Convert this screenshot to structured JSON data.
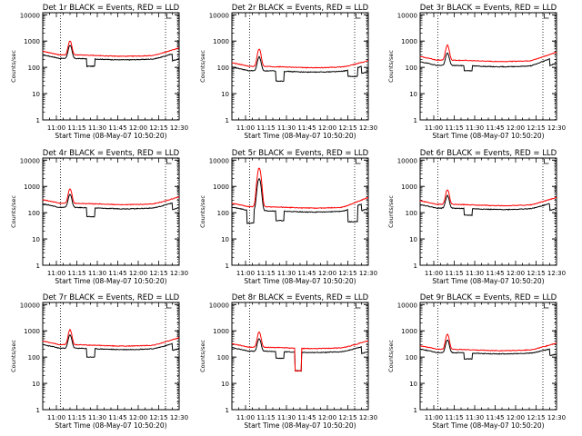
{
  "chart_data": [
    {
      "type": "line",
      "title": "Det 1r BLACK = Events, RED = LLD",
      "xlabel": "Start Time (08-May-07 10:50:20)",
      "ylabel": "Counts/sec",
      "x_tick_labels": [
        "11:00",
        "11:15",
        "11:30",
        "11:45",
        "12:00",
        "12:15",
        "12:30"
      ],
      "y_tick_labels": [
        "1",
        "10",
        "100",
        "1000",
        "10000"
      ],
      "y_scale": "log",
      "ylim": [
        1,
        12000
      ],
      "xlim": [
        "10:50",
        "12:30"
      ],
      "events_level": 220,
      "lld_level": 300,
      "events_peak": 700,
      "lld_peak": 1000,
      "events_dips": [
        [
          "11:22",
          "11:28",
          110
        ]
      ],
      "events_drop_after": "12:25",
      "lld_rise_end": 550,
      "series": [
        {
          "name": "BLACK = Events",
          "color": "#000000"
        },
        {
          "name": "RED = LLD",
          "color": "#ff0000"
        }
      ]
    },
    {
      "type": "line",
      "title": "Det 2r BLACK = Events, RED = LLD",
      "xlabel": "Start Time (08-May-07 10:50:20)",
      "ylabel": "Counts/sec",
      "x_tick_labels": [
        "11:00",
        "11:15",
        "11:30",
        "11:45",
        "12:00",
        "12:15",
        "12:30"
      ],
      "y_tick_labels": [
        "1",
        "10",
        "100",
        "1000",
        "10000"
      ],
      "y_scale": "log",
      "ylim": [
        1,
        12000
      ],
      "xlim": [
        "10:50",
        "12:30"
      ],
      "events_level": 75,
      "lld_level": 110,
      "events_peak": 250,
      "lld_peak": 500,
      "events_dips": [
        [
          "11:22",
          "11:28",
          30
        ],
        [
          "12:15",
          "12:22",
          45
        ]
      ],
      "events_drop_after": "12:25",
      "lld_rise_end": 180,
      "series": [
        {
          "name": "BLACK = Events",
          "color": "#000000"
        },
        {
          "name": "RED = LLD",
          "color": "#ff0000"
        }
      ]
    },
    {
      "type": "line",
      "title": "Det 3r BLACK = Events, RED = LLD",
      "xlabel": "Start Time (08-May-07 10:50:20)",
      "ylabel": "Counts/sec",
      "x_tick_labels": [
        "11:00",
        "11:15",
        "11:30",
        "11:45",
        "12:00",
        "12:15",
        "12:30"
      ],
      "y_tick_labels": [
        "1",
        "10",
        "100",
        "1000",
        "10000"
      ],
      "y_scale": "log",
      "ylim": [
        1,
        12000
      ],
      "xlim": [
        "10:50",
        "12:30"
      ],
      "events_level": 120,
      "lld_level": 190,
      "events_peak": 350,
      "lld_peak": 700,
      "events_dips": [
        [
          "11:22",
          "11:28",
          75
        ]
      ],
      "events_drop_after": "12:25",
      "lld_rise_end": 380,
      "series": [
        {
          "name": "BLACK = Events",
          "color": "#000000"
        },
        {
          "name": "RED = LLD",
          "color": "#ff0000"
        }
      ]
    },
    {
      "type": "line",
      "title": "Det 4r BLACK = Events, RED = LLD",
      "xlabel": "Start Time (08-May-07 10:50:20)",
      "ylabel": "Counts/sec",
      "x_tick_labels": [
        "11:00",
        "11:15",
        "11:30",
        "11:45",
        "12:00",
        "12:15",
        "12:30"
      ],
      "y_tick_labels": [
        "1",
        "10",
        "100",
        "1000",
        "10000"
      ],
      "y_scale": "log",
      "ylim": [
        1,
        12000
      ],
      "xlim": [
        "10:50",
        "12:30"
      ],
      "events_level": 160,
      "lld_level": 230,
      "events_peak": 500,
      "lld_peak": 800,
      "events_dips": [
        [
          "11:22",
          "11:28",
          70
        ]
      ],
      "events_drop_after": "12:25",
      "lld_rise_end": 400,
      "series": [
        {
          "name": "BLACK = Events",
          "color": "#000000"
        },
        {
          "name": "RED = LLD",
          "color": "#ff0000"
        }
      ]
    },
    {
      "type": "line",
      "title": "Det 5r BLACK = Events, RED = LLD",
      "xlabel": "Start Time (08-May-07 10:50:20)",
      "ylabel": "Counts/sec",
      "x_tick_labels": [
        "11:00",
        "11:15",
        "11:30",
        "11:45",
        "12:00",
        "12:15",
        "12:30"
      ],
      "y_tick_labels": [
        "1",
        "10",
        "100",
        "1000",
        "10000"
      ],
      "y_scale": "log",
      "ylim": [
        1,
        12000
      ],
      "xlim": [
        "10:50",
        "12:30"
      ],
      "events_level": 120,
      "lld_level": 170,
      "events_peak": 2000,
      "lld_peak": 5000,
      "events_dips": [
        [
          "11:01",
          "11:06",
          40
        ],
        [
          "11:22",
          "11:28",
          50
        ],
        [
          "12:15",
          "12:22",
          45
        ]
      ],
      "events_drop_after": "12:25",
      "lld_rise_end": 380,
      "series": [
        {
          "name": "BLACK = Events",
          "color": "#000000"
        },
        {
          "name": "RED = LLD",
          "color": "#ff0000"
        }
      ]
    },
    {
      "type": "line",
      "title": "Det 6r BLACK = Events, RED = LLD",
      "xlabel": "Start Time (08-May-07 10:50:20)",
      "ylabel": "Counts/sec",
      "x_tick_labels": [
        "11:00",
        "11:15",
        "11:30",
        "11:45",
        "12:00",
        "12:15",
        "12:30"
      ],
      "y_tick_labels": [
        "1",
        "10",
        "100",
        "1000",
        "10000"
      ],
      "y_scale": "log",
      "ylim": [
        1,
        12000
      ],
      "xlim": [
        "10:50",
        "12:30"
      ],
      "events_level": 150,
      "lld_level": 210,
      "events_peak": 450,
      "lld_peak": 750,
      "events_dips": [
        [
          "11:22",
          "11:28",
          80
        ]
      ],
      "events_drop_after": "12:25",
      "lld_rise_end": 380,
      "series": [
        {
          "name": "BLACK = Events",
          "color": "#000000"
        },
        {
          "name": "RED = LLD",
          "color": "#ff0000"
        }
      ]
    },
    {
      "type": "line",
      "title": "Det 7r BLACK = Events, RED = LLD",
      "xlabel": "Start Time (08-May-07 10:50:20)",
      "ylabel": "Counts/sec",
      "x_tick_labels": [
        "11:00",
        "11:15",
        "11:30",
        "11:45",
        "12:00",
        "12:15",
        "12:30"
      ],
      "y_tick_labels": [
        "1",
        "10",
        "100",
        "1000",
        "10000"
      ],
      "y_scale": "log",
      "ylim": [
        1,
        12000
      ],
      "xlim": [
        "10:50",
        "12:30"
      ],
      "events_level": 220,
      "lld_level": 300,
      "events_peak": 700,
      "lld_peak": 1100,
      "events_dips": [
        [
          "11:22",
          "11:28",
          100
        ]
      ],
      "events_drop_after": "12:25",
      "lld_rise_end": 550,
      "series": [
        {
          "name": "BLACK = Events",
          "color": "#000000"
        },
        {
          "name": "RED = LLD",
          "color": "#ff0000"
        }
      ]
    },
    {
      "type": "line",
      "title": "Det 8r BLACK = Events, RED = LLD",
      "xlabel": "Start Time (08-May-07 10:50:20)",
      "ylabel": "Counts/sec",
      "x_tick_labels": [
        "11:00",
        "11:15",
        "11:30",
        "11:45",
        "12:00",
        "12:15",
        "12:30"
      ],
      "y_tick_labels": [
        "1",
        "10",
        "100",
        "1000",
        "10000"
      ],
      "y_scale": "log",
      "ylim": [
        1,
        12000
      ],
      "xlim": [
        "10:50",
        "12:30"
      ],
      "events_level": 170,
      "lld_level": 240,
      "events_peak": 500,
      "lld_peak": 900,
      "events_dips": [
        [
          "11:22",
          "11:28",
          90
        ],
        [
          "11:36",
          "11:41",
          30
        ]
      ],
      "lld_dips": [
        [
          "11:36",
          "11:41",
          30
        ]
      ],
      "events_drop_after": "12:25",
      "lld_rise_end": 420,
      "series": [
        {
          "name": "BLACK = Events",
          "color": "#000000"
        },
        {
          "name": "RED = LLD",
          "color": "#ff0000"
        }
      ]
    },
    {
      "type": "line",
      "title": "Det 9r BLACK = Events, RED = LLD",
      "xlabel": "Start Time (08-May-07 10:50:20)",
      "ylabel": "Counts/sec",
      "x_tick_labels": [
        "11:00",
        "11:15",
        "11:30",
        "11:45",
        "12:00",
        "12:15",
        "12:30"
      ],
      "y_tick_labels": [
        "1",
        "10",
        "100",
        "1000",
        "10000"
      ],
      "y_scale": "log",
      "ylim": [
        1,
        12000
      ],
      "xlim": [
        "10:50",
        "12:30"
      ],
      "events_level": 150,
      "lld_level": 200,
      "events_peak": 450,
      "lld_peak": 750,
      "events_dips": [
        [
          "11:22",
          "11:28",
          85
        ]
      ],
      "events_drop_after": "12:25",
      "lld_rise_end": 340,
      "series": [
        {
          "name": "BLACK = Events",
          "color": "#000000"
        },
        {
          "name": "RED = LLD",
          "color": "#ff0000"
        }
      ]
    }
  ]
}
